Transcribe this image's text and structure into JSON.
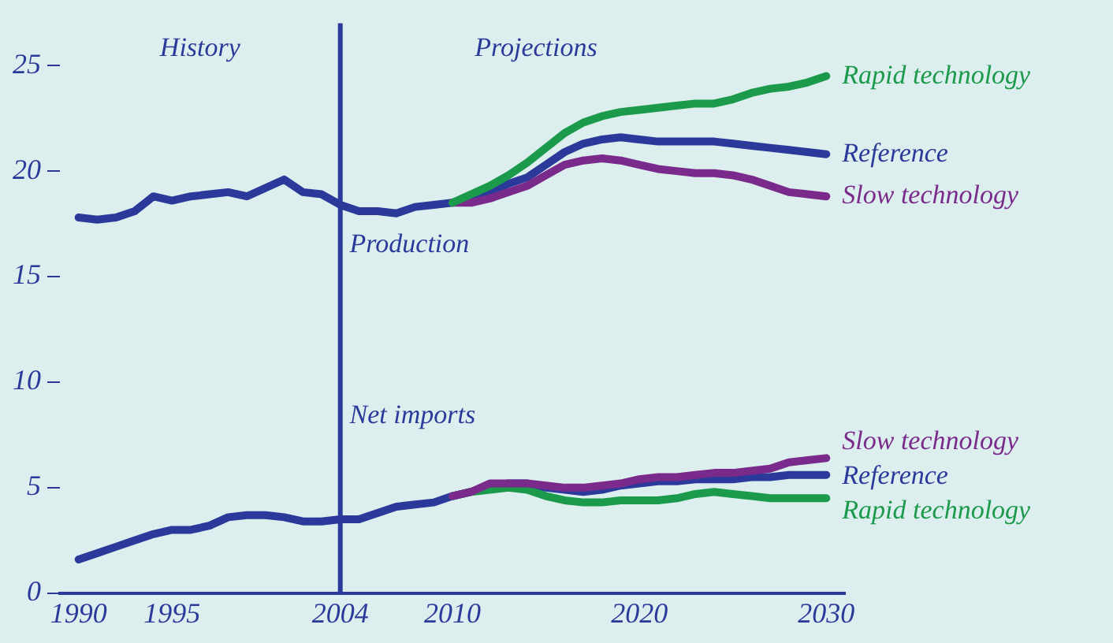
{
  "chart_data": {
    "type": "line",
    "xlim": [
      1989,
      2031
    ],
    "xticks": [
      1990,
      1995,
      2004,
      2010,
      2020,
      2030
    ],
    "ylim": [
      0,
      27
    ],
    "yticks": [
      0,
      5,
      10,
      15,
      20,
      25
    ],
    "grid": false,
    "legend": false,
    "line_style": "solid",
    "ref_lines": [
      {
        "axis": "x",
        "value": 2004,
        "color": "#2b3a9a"
      }
    ],
    "annotations": [
      "History",
      "Projections",
      {
        "text": "Production",
        "x": 2004.5,
        "y": 16.5
      },
      {
        "text": "Net imports",
        "x": 2004.5,
        "y": 8.4
      }
    ],
    "series": [
      {
        "name": "Rapid technology",
        "color": "#1a9a4a",
        "x": [
          2010,
          2011,
          2012,
          2013,
          2014,
          2015,
          2016,
          2017,
          2018,
          2019,
          2020,
          2021,
          2022,
          2023,
          2024,
          2025,
          2026,
          2027,
          2028,
          2029,
          2030
        ],
        "values": [
          18.5,
          18.9,
          19.3,
          19.8,
          20.4,
          21.1,
          21.8,
          22.3,
          22.6,
          22.8,
          22.9,
          23.0,
          23.1,
          23.2,
          23.2,
          23.4,
          23.7,
          23.9,
          24.0,
          24.2,
          24.5
        ]
      },
      {
        "name": "Slow technology",
        "color": "#7a2a8a",
        "x": [
          2010,
          2011,
          2012,
          2013,
          2014,
          2015,
          2016,
          2017,
          2018,
          2019,
          2020,
          2021,
          2022,
          2023,
          2024,
          2025,
          2026,
          2027,
          2028,
          2029,
          2030
        ],
        "values": [
          18.5,
          18.5,
          18.7,
          19.0,
          19.3,
          19.8,
          20.3,
          20.5,
          20.6,
          20.5,
          20.3,
          20.1,
          20.0,
          19.9,
          19.9,
          19.8,
          19.6,
          19.3,
          19.0,
          18.9,
          18.8
        ]
      },
      {
        "name": "Reference",
        "color": "#2b3a9a",
        "x": [
          1990,
          1991,
          1992,
          1993,
          1994,
          1995,
          1996,
          1997,
          1998,
          1999,
          2000,
          2001,
          2002,
          2003,
          2004,
          2005,
          2006,
          2007,
          2008,
          2009,
          2010,
          2011,
          2012,
          2013,
          2014,
          2015,
          2016,
          2017,
          2018,
          2019,
          2020,
          2021,
          2022,
          2023,
          2024,
          2025,
          2026,
          2027,
          2028,
          2029,
          2030
        ],
        "values": [
          17.8,
          17.7,
          17.8,
          18.1,
          18.8,
          18.6,
          18.8,
          18.9,
          19.0,
          18.8,
          19.2,
          19.6,
          19.0,
          18.9,
          18.4,
          18.1,
          18.1,
          18.0,
          18.3,
          18.4,
          18.5,
          18.7,
          19.0,
          19.4,
          19.7,
          20.3,
          20.9,
          21.3,
          21.5,
          21.6,
          21.5,
          21.4,
          21.4,
          21.4,
          21.4,
          21.3,
          21.2,
          21.1,
          21.0,
          20.9,
          20.8
        ]
      },
      {
        "name": "Slow technology",
        "color": "#7a2a8a",
        "x": [
          2010,
          2011,
          2012,
          2013,
          2014,
          2015,
          2016,
          2017,
          2018,
          2019,
          2020,
          2021,
          2022,
          2023,
          2024,
          2025,
          2026,
          2027,
          2028,
          2029,
          2030
        ],
        "values": [
          4.6,
          4.8,
          5.2,
          5.2,
          5.2,
          5.1,
          5.0,
          5.0,
          5.1,
          5.2,
          5.4,
          5.5,
          5.5,
          5.6,
          5.7,
          5.7,
          5.8,
          5.9,
          6.2,
          6.3,
          6.4
        ]
      },
      {
        "name": "Rapid technology",
        "color": "#1a9a4a",
        "x": [
          2010,
          2011,
          2012,
          2013,
          2014,
          2015,
          2016,
          2017,
          2018,
          2019,
          2020,
          2021,
          2022,
          2023,
          2024,
          2025,
          2026,
          2027,
          2028,
          2029,
          2030
        ],
        "values": [
          4.6,
          4.8,
          4.9,
          5.0,
          4.9,
          4.6,
          4.4,
          4.3,
          4.3,
          4.4,
          4.4,
          4.4,
          4.5,
          4.7,
          4.8,
          4.7,
          4.6,
          4.5,
          4.5,
          4.5,
          4.5
        ]
      },
      {
        "name": "Reference",
        "color": "#2b3a9a",
        "x": [
          1990,
          1991,
          1992,
          1993,
          1994,
          1995,
          1996,
          1997,
          1998,
          1999,
          2000,
          2001,
          2002,
          2003,
          2004,
          2005,
          2006,
          2007,
          2008,
          2009,
          2010,
          2011,
          2012,
          2013,
          2014,
          2015,
          2016,
          2017,
          2018,
          2019,
          2020,
          2021,
          2022,
          2023,
          2024,
          2025,
          2026,
          2027,
          2028,
          2029,
          2030
        ],
        "values": [
          1.6,
          1.9,
          2.2,
          2.5,
          2.8,
          3.0,
          3.0,
          3.2,
          3.6,
          3.7,
          3.7,
          3.6,
          3.4,
          3.4,
          3.5,
          3.5,
          3.8,
          4.1,
          4.2,
          4.3,
          4.6,
          4.8,
          5.1,
          5.2,
          5.2,
          5.0,
          4.9,
          4.8,
          4.9,
          5.1,
          5.2,
          5.3,
          5.3,
          5.4,
          5.4,
          5.4,
          5.5,
          5.5,
          5.6,
          5.6,
          5.6
        ]
      }
    ]
  }
}
